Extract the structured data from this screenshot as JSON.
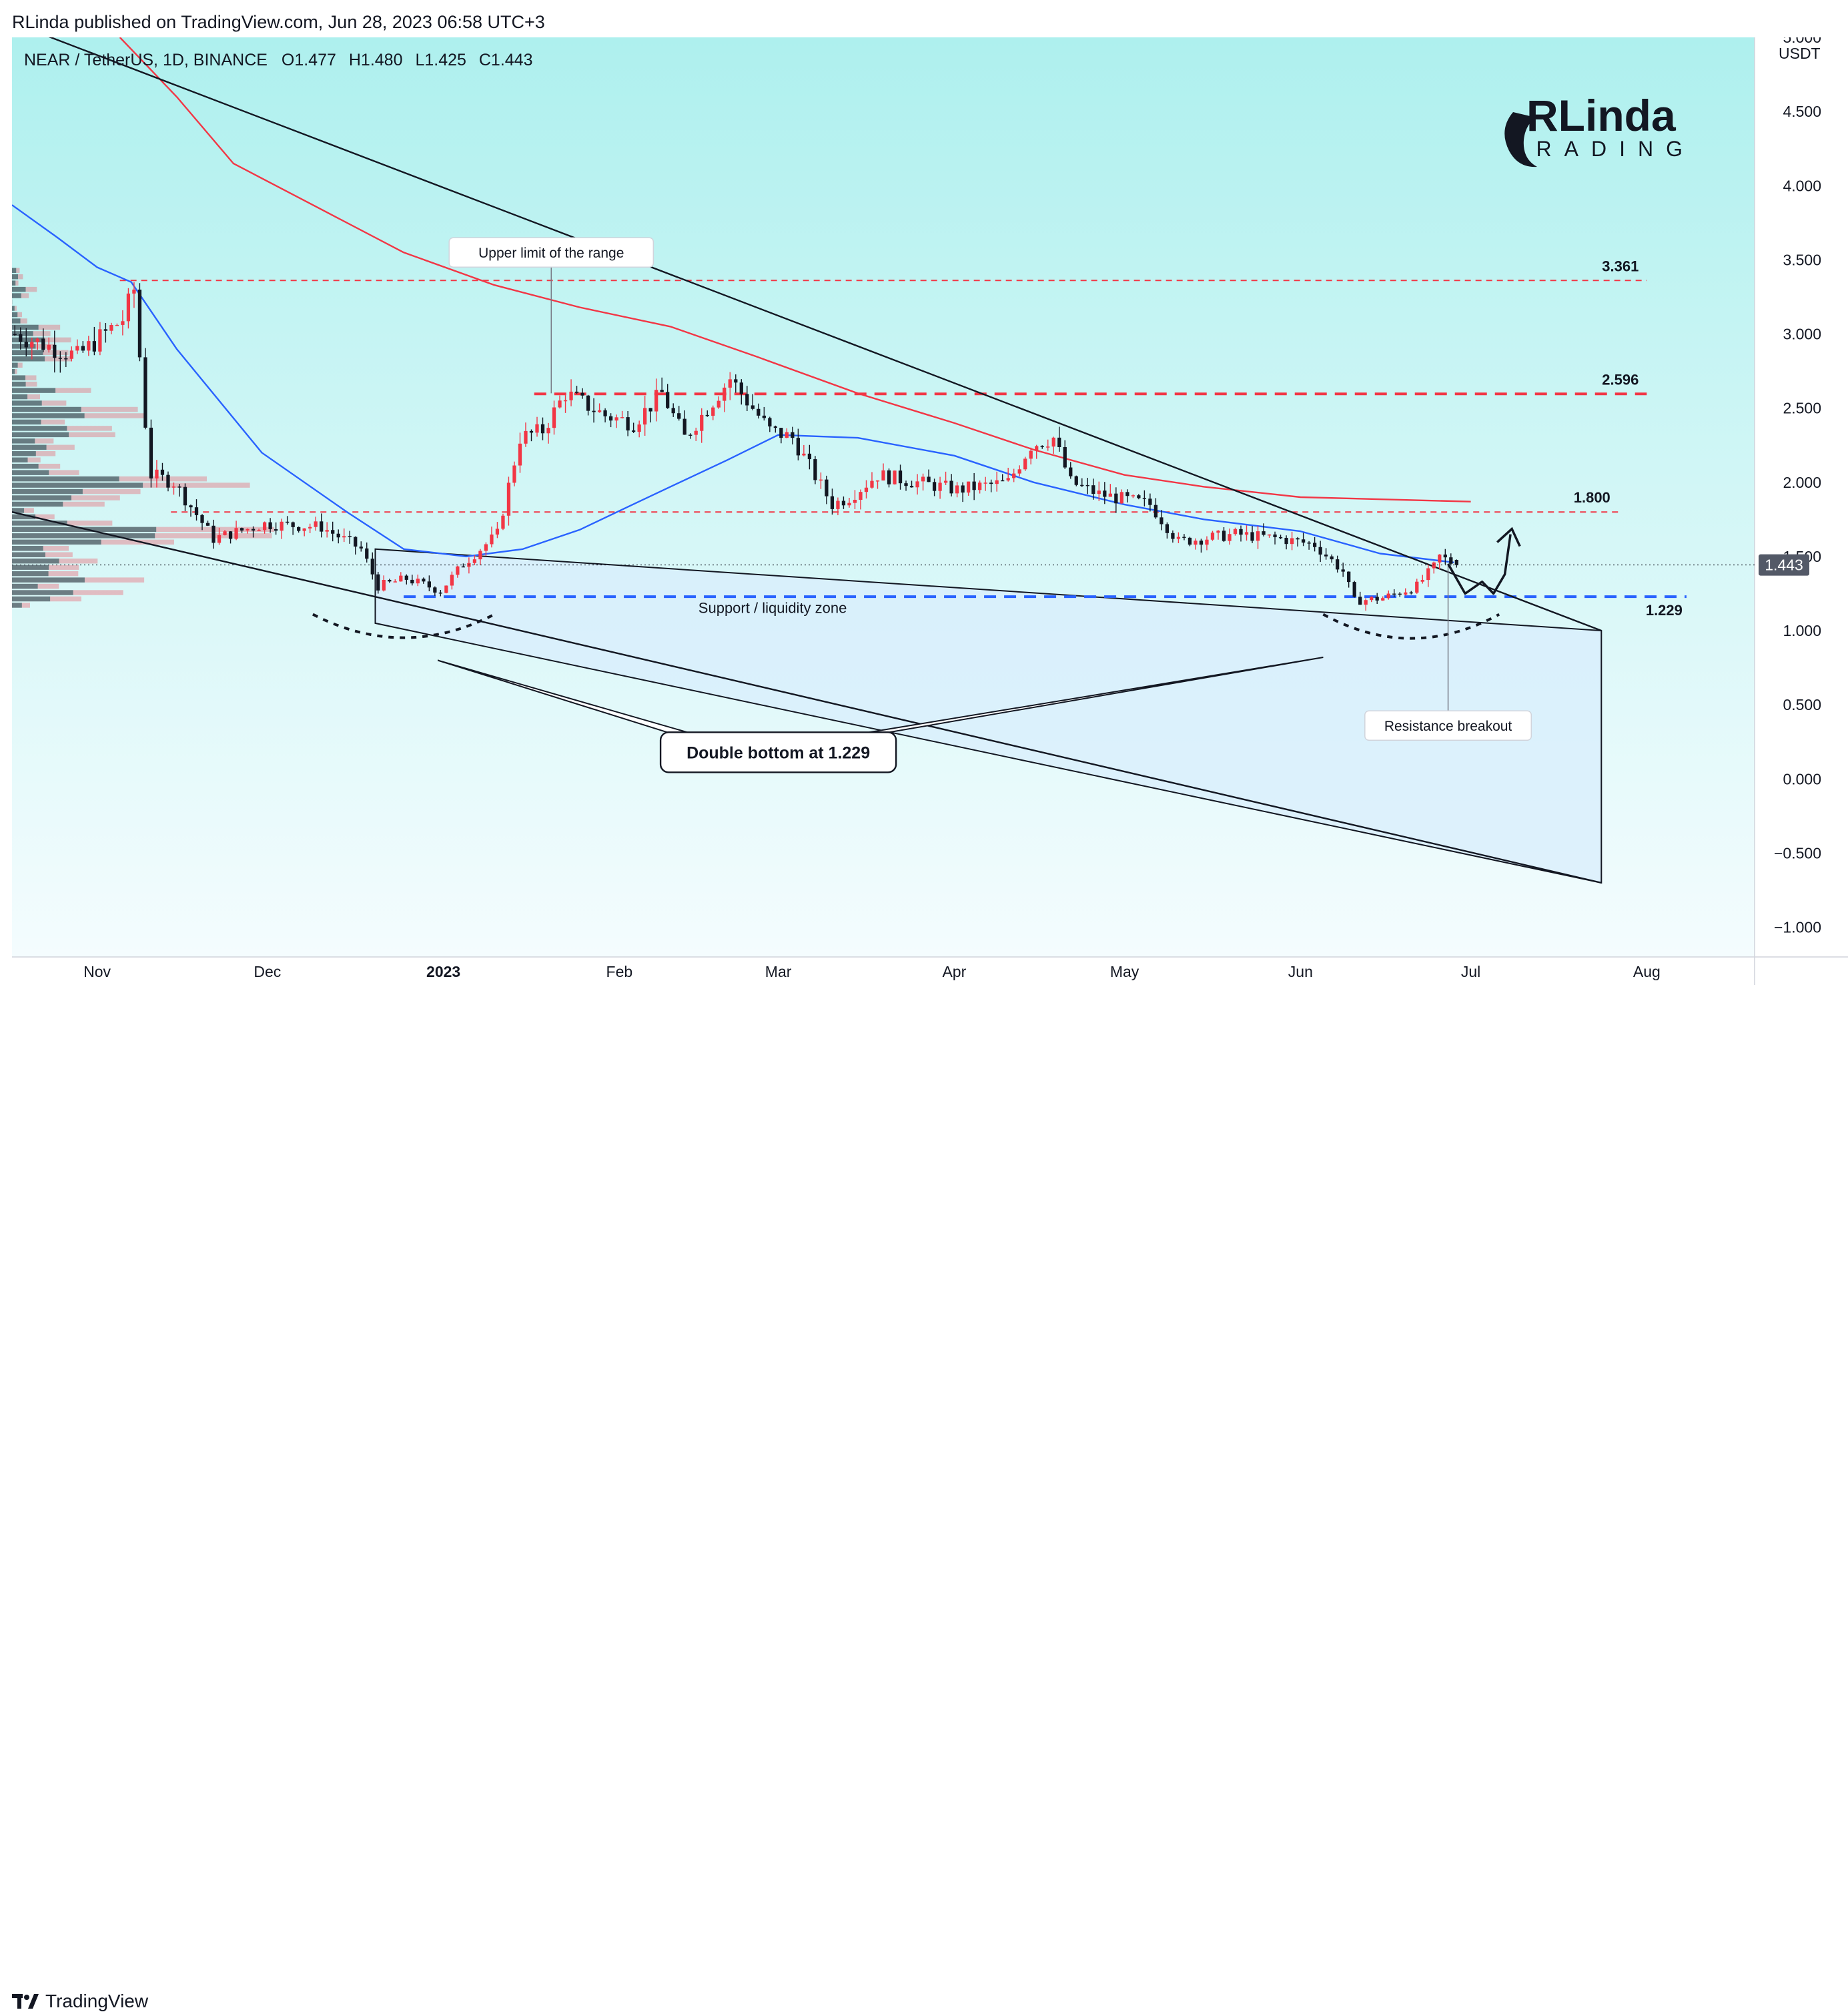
{
  "header": {
    "published_text": "RLinda published on TradingView.com, Jun 28, 2023 06:58 UTC+3"
  },
  "legend": {
    "symbol_line": "NEAR / TetherUS, 1D, BINANCE",
    "open": "O1.477",
    "high": "H1.480",
    "low": "L1.425",
    "close": "C1.443"
  },
  "watermark": {
    "line1": "RLinda",
    "line2": "TRADING"
  },
  "price_axis": {
    "currency": "USDT",
    "current_price_label": "1.443"
  },
  "footer": {
    "brand": "TradingView"
  },
  "colors": {
    "bull": "#f23645",
    "bear": "#131722",
    "ma_fast": "#2962ff",
    "ma_slow": "#f23645",
    "support": "#2962ff",
    "bg_top": "#aef0ee",
    "bg_bottom": "#f3fbff",
    "wedge_fill": "#d8eefc"
  },
  "chart_data": {
    "type": "candlestick",
    "symbol": "NEAR / TetherUS",
    "timeframe": "1D",
    "exchange": "BINANCE",
    "ylim": [
      -1.2,
      5.0
    ],
    "y_ticks": [
      5.0,
      4.5,
      4.0,
      3.5,
      3.0,
      2.5,
      2.0,
      1.5,
      1.0,
      0.5,
      0.0,
      -0.5,
      -1.0
    ],
    "y_tick_labels": [
      "5.000",
      "4.500",
      "4.000",
      "3.500",
      "3.000",
      "2.500",
      "2.000",
      "1.500",
      "1.000",
      "0.500",
      "0.000",
      "−0.500",
      "−1.000"
    ],
    "x_range": [
      "2022-10-17",
      "2023-08-20"
    ],
    "x_ticks": [
      {
        "date": "2022-11-01",
        "label": "Nov"
      },
      {
        "date": "2022-12-01",
        "label": "Dec"
      },
      {
        "date": "2023-01-01",
        "label": "2023"
      },
      {
        "date": "2023-02-01",
        "label": "Feb"
      },
      {
        "date": "2023-03-01",
        "label": "Mar"
      },
      {
        "date": "2023-04-01",
        "label": "Apr"
      },
      {
        "date": "2023-05-01",
        "label": "May"
      },
      {
        "date": "2023-06-01",
        "label": "Jun"
      },
      {
        "date": "2023-07-01",
        "label": "Jul"
      },
      {
        "date": "2023-08-01",
        "label": "Aug"
      }
    ],
    "close_anchors": [
      [
        "2022-10-17",
        3.0
      ],
      [
        "2022-10-28",
        2.85
      ],
      [
        "2022-11-05",
        3.1
      ],
      [
        "2022-11-07",
        3.3
      ],
      [
        "2022-11-09",
        2.4
      ],
      [
        "2022-11-10",
        2.05
      ],
      [
        "2022-11-14",
        2.0
      ],
      [
        "2022-11-21",
        1.62
      ],
      [
        "2022-11-30",
        1.72
      ],
      [
        "2022-12-10",
        1.7
      ],
      [
        "2022-12-17",
        1.55
      ],
      [
        "2022-12-20",
        1.3
      ],
      [
        "2022-12-25",
        1.35
      ],
      [
        "2022-12-31",
        1.27
      ],
      [
        "2023-01-04",
        1.45
      ],
      [
        "2023-01-10",
        1.65
      ],
      [
        "2023-01-14",
        2.3
      ],
      [
        "2023-01-18",
        2.35
      ],
      [
        "2023-01-22",
        2.6
      ],
      [
        "2023-01-29",
        2.45
      ],
      [
        "2023-02-03",
        2.4
      ],
      [
        "2023-02-08",
        2.6
      ],
      [
        "2023-02-12",
        2.3
      ],
      [
        "2023-02-20",
        2.7
      ],
      [
        "2023-02-27",
        2.35
      ],
      [
        "2023-03-03",
        2.3
      ],
      [
        "2023-03-10",
        1.85
      ],
      [
        "2023-03-13",
        1.9
      ],
      [
        "2023-03-18",
        2.05
      ],
      [
        "2023-04-01",
        1.95
      ],
      [
        "2023-04-10",
        2.0
      ],
      [
        "2023-04-14",
        2.25
      ],
      [
        "2023-04-18",
        2.3
      ],
      [
        "2023-04-21",
        2.0
      ],
      [
        "2023-04-26",
        1.92
      ],
      [
        "2023-05-05",
        1.85
      ],
      [
        "2023-05-10",
        1.6
      ],
      [
        "2023-05-20",
        1.65
      ],
      [
        "2023-05-28",
        1.62
      ],
      [
        "2023-06-03",
        1.58
      ],
      [
        "2023-06-08",
        1.4
      ],
      [
        "2023-06-10",
        1.2
      ],
      [
        "2023-06-15",
        1.22
      ],
      [
        "2023-06-21",
        1.3
      ],
      [
        "2023-06-24",
        1.43
      ],
      [
        "2023-06-25",
        1.5
      ],
      [
        "2023-06-28",
        1.443
      ]
    ],
    "ma_fast": [
      [
        "2022-10-17",
        3.87
      ],
      [
        "2022-10-25",
        3.65
      ],
      [
        "2022-11-01",
        3.45
      ],
      [
        "2022-11-07",
        3.35
      ],
      [
        "2022-11-15",
        2.9
      ],
      [
        "2022-11-30",
        2.2
      ],
      [
        "2022-12-15",
        1.8
      ],
      [
        "2022-12-25",
        1.55
      ],
      [
        "2023-01-05",
        1.5
      ],
      [
        "2023-01-15",
        1.55
      ],
      [
        "2023-01-25",
        1.68
      ],
      [
        "2023-02-05",
        1.88
      ],
      [
        "2023-02-20",
        2.15
      ],
      [
        "2023-03-01",
        2.32
      ],
      [
        "2023-03-15",
        2.3
      ],
      [
        "2023-04-01",
        2.18
      ],
      [
        "2023-04-15",
        2.0
      ],
      [
        "2023-05-01",
        1.85
      ],
      [
        "2023-05-15",
        1.75
      ],
      [
        "2023-06-01",
        1.67
      ],
      [
        "2023-06-15",
        1.52
      ],
      [
        "2023-06-28",
        1.46
      ]
    ],
    "ma_slow": [
      [
        "2022-11-05",
        5.0
      ],
      [
        "2022-11-15",
        4.6
      ],
      [
        "2022-11-25",
        4.15
      ],
      [
        "2022-12-10",
        3.85
      ],
      [
        "2022-12-25",
        3.55
      ],
      [
        "2023-01-10",
        3.33
      ],
      [
        "2023-01-25",
        3.18
      ],
      [
        "2023-02-10",
        3.05
      ],
      [
        "2023-02-25",
        2.85
      ],
      [
        "2023-03-15",
        2.6
      ],
      [
        "2023-04-01",
        2.4
      ],
      [
        "2023-04-15",
        2.22
      ],
      [
        "2023-05-01",
        2.05
      ],
      [
        "2023-05-15",
        1.97
      ],
      [
        "2023-06-01",
        1.9
      ],
      [
        "2023-07-01",
        1.87
      ]
    ],
    "levels": [
      {
        "label": "3.361",
        "price": 3.361,
        "style": "dashed-thin",
        "color": "#f23645",
        "from": "2022-11-05",
        "to": "2023-08-01"
      },
      {
        "label": "2.596",
        "price": 2.596,
        "style": "dashed-thick",
        "color": "#f23645",
        "from": "2023-01-17",
        "to": "2023-08-01"
      },
      {
        "label": "1.800",
        "price": 1.8,
        "style": "dashed-thin",
        "color": "#f23645",
        "from": "2022-11-14",
        "to": "2023-07-27"
      },
      {
        "label": "1.229",
        "price": 1.229,
        "style": "dashed-thick",
        "color": "#2962ff",
        "from": "2022-12-25",
        "to": "2023-08-08"
      }
    ],
    "trendlines": [
      {
        "from": [
          "2022-10-17",
          5.1
        ],
        "to": [
          "2023-07-24",
          1.0
        ]
      },
      {
        "from": [
          "2022-10-17",
          1.8
        ],
        "to": [
          "2023-07-24",
          -0.7
        ]
      }
    ],
    "wedge_polygon": [
      [
        "2022-12-20",
        1.55
      ],
      [
        "2023-07-24",
        1.0
      ],
      [
        "2023-07-24",
        -0.7
      ],
      [
        "2022-12-20",
        1.05
      ]
    ],
    "annotations": [
      {
        "text": "Upper limit of the range",
        "x": "2023-01-20",
        "y": 3.55,
        "pointer_to": [
          "2023-01-20",
          2.6
        ],
        "style": "callout"
      },
      {
        "text": "Support / liquidity zone",
        "x": "2023-02-28",
        "y": 1.12,
        "style": "plain"
      },
      {
        "text": "Resistance breakout",
        "x": "2023-06-27",
        "y": 0.36,
        "pointer_to": [
          "2023-06-27",
          1.45
        ],
        "style": "callout"
      },
      {
        "text": "Double bottom at 1.229",
        "x": "2023-03-01",
        "y": 0.18,
        "style": "callout-bold",
        "pointer_to": [
          [
            "2022-12-31",
            0.8
          ],
          [
            "2023-06-05",
            0.82
          ]
        ]
      }
    ],
    "projection_path": [
      [
        "2023-06-27",
        1.45
      ],
      [
        "2023-06-30",
        1.25
      ],
      [
        "2023-07-03",
        1.33
      ],
      [
        "2023-07-05",
        1.25
      ],
      [
        "2023-07-07",
        1.38
      ],
      [
        "2023-07-08",
        1.65
      ]
    ]
  }
}
